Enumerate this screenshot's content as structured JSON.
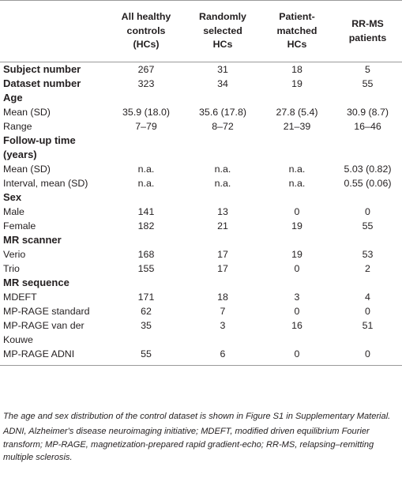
{
  "table": {
    "columns": [
      "",
      "All healthy controls (HCs)",
      "Randomly selected HCs",
      "Patient-matched HCs",
      "RR-MS patients"
    ],
    "header_lines": [
      [],
      [
        "All healthy",
        "controls",
        "(HCs)"
      ],
      [
        "Randomly",
        "selected",
        "HCs"
      ],
      [
        "Patient-",
        "matched",
        "HCs"
      ],
      [
        "RR-MS",
        "patients"
      ]
    ],
    "rows": [
      {
        "type": "subject",
        "label": "Subject number",
        "values": [
          "267",
          "31",
          "18",
          "5"
        ]
      },
      {
        "type": "subject",
        "label": "Dataset number",
        "values": [
          "323",
          "34",
          "19",
          "55"
        ]
      },
      {
        "type": "section",
        "label": "Age"
      },
      {
        "type": "data",
        "label": "Mean (SD)",
        "values": [
          "35.9 (18.0)",
          "35.6 (17.8)",
          "27.8 (5.4)",
          "30.9 (8.7)"
        ]
      },
      {
        "type": "data",
        "label": "Range",
        "values": [
          "7–79",
          "8–72",
          "21–39",
          "16–46"
        ]
      },
      {
        "type": "section",
        "label": "Follow-up time (years)",
        "lines": [
          "Follow-up time",
          "(years)"
        ]
      },
      {
        "type": "data",
        "label": "Mean (SD)",
        "values": [
          "n.a.",
          "n.a.",
          "n.a.",
          "5.03 (0.82)"
        ]
      },
      {
        "type": "data",
        "label": "Interval, mean (SD)",
        "values": [
          "n.a.",
          "n.a.",
          "n.a.",
          "0.55 (0.06)"
        ]
      },
      {
        "type": "section",
        "label": "Sex"
      },
      {
        "type": "data",
        "label": "Male",
        "values": [
          "141",
          "13",
          "0",
          "0"
        ]
      },
      {
        "type": "data",
        "label": "Female",
        "values": [
          "182",
          "21",
          "19",
          "55"
        ]
      },
      {
        "type": "section",
        "label": "MR scanner"
      },
      {
        "type": "data",
        "label": "Verio",
        "values": [
          "168",
          "17",
          "19",
          "53"
        ]
      },
      {
        "type": "data",
        "label": "Trio",
        "values": [
          "155",
          "17",
          "0",
          "2"
        ]
      },
      {
        "type": "section",
        "label": "MR sequence"
      },
      {
        "type": "data",
        "label": "MDEFT",
        "values": [
          "171",
          "18",
          "3",
          "4"
        ]
      },
      {
        "type": "data",
        "label": "MP-RAGE standard",
        "values": [
          "62",
          "7",
          "0",
          "0"
        ]
      },
      {
        "type": "data",
        "label": "MP-RAGE van der Kouwe",
        "values": [
          "35",
          "3",
          "16",
          "51"
        ],
        "lines": [
          "MP-RAGE van der",
          "Kouwe"
        ]
      },
      {
        "type": "data",
        "label": "MP-RAGE ADNI",
        "values": [
          "55",
          "6",
          "0",
          "0"
        ]
      }
    ]
  },
  "notes": {
    "note1": "The age and sex distribution of the control dataset is shown in Figure S1 in Supplementary Material.",
    "note2": "ADNI, Alzheimer's disease neuroimaging initiative; MDEFT, modified driven equilibrium Fourier transform; MP-RAGE, magnetization-prepared rapid gradient-echo; RR-MS, relapsing–remitting multiple sclerosis."
  }
}
